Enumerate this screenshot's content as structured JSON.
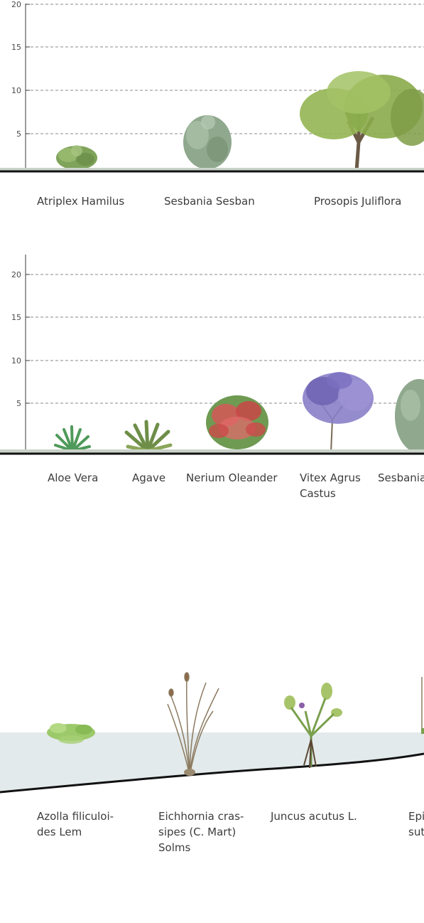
{
  "chart1": {
    "y_ticks": [
      "20",
      "15",
      "10",
      "5"
    ],
    "plants": [
      {
        "name": "Atriplex Hamilus",
        "color": "#7fa35a"
      },
      {
        "name": "Sesbania Sesban",
        "color": "#8fa88e"
      },
      {
        "name": "Prosopis Juliflora",
        "color": "#8fb04d"
      }
    ]
  },
  "chart2": {
    "y_ticks": [
      "20",
      "15",
      "10",
      "5"
    ],
    "plants": [
      {
        "name": "Aloe Vera",
        "color": "#4f9a5a"
      },
      {
        "name": "Agave",
        "color": "#6e8e48"
      },
      {
        "name": "Nerium Oleander",
        "color": "#cc4a4a"
      },
      {
        "name": "Vitex Agrus",
        "name2": "Castus",
        "color": "#7b6fc0"
      },
      {
        "name": "Sesbania",
        "color": "#8fa88e"
      }
    ]
  },
  "aquatic": {
    "water_color": "#e3eaeb",
    "plants": [
      {
        "name": "Azolla filiculoi-",
        "name2": "des Lem"
      },
      {
        "name": "Eichhornia cras-",
        "name2": "sipes (C. Mart)",
        "name3": "Solms"
      },
      {
        "name": "Juncus acutus L."
      },
      {
        "name": "Epi",
        "name2": "sut"
      }
    ]
  }
}
